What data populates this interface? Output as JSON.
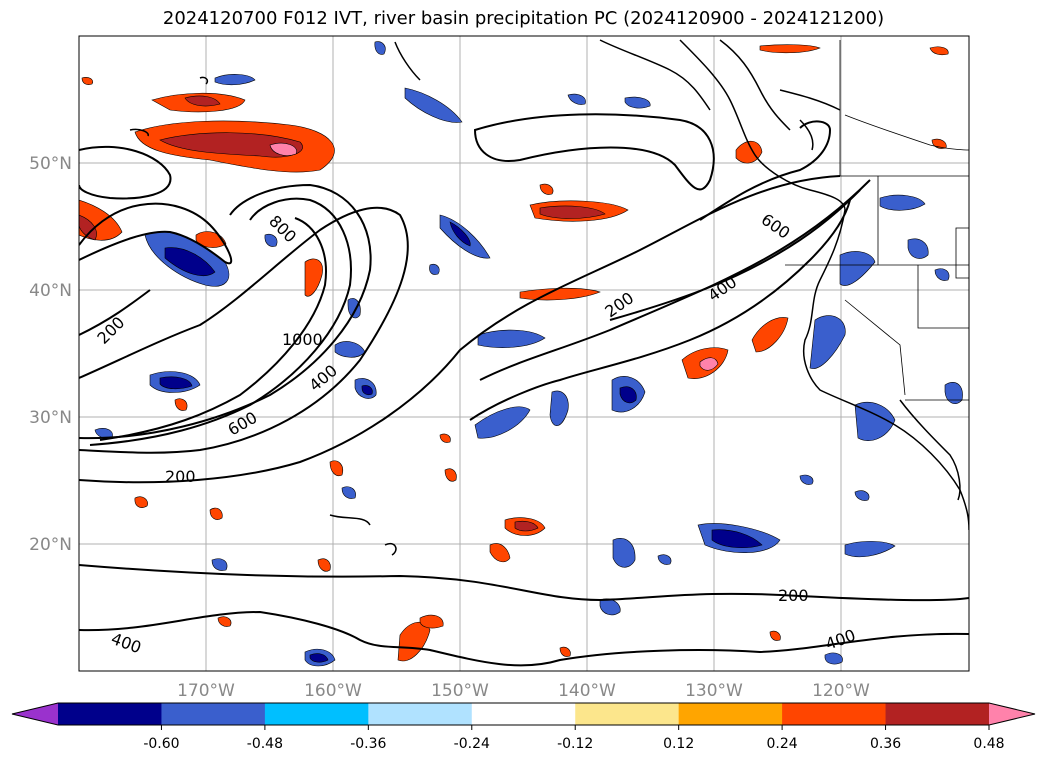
{
  "title": "2024120700 F012 IVT, river basin precipitation PC (2024120900 - 2024121200)",
  "lon_ticks": [
    "170°W",
    "160°W",
    "150°W",
    "140°W",
    "130°W",
    "120°W"
  ],
  "lat_ticks": [
    "50°N",
    "40°N",
    "30°N",
    "20°N"
  ],
  "contour_labels": [
    "800",
    "200",
    "1000",
    "400",
    "600",
    "200",
    "200",
    "400",
    "600",
    "200",
    "400"
  ],
  "colorbar": {
    "colors": [
      "#9a32cd",
      "#00008b",
      "#3a5fcd",
      "#00bfff",
      "#b0e2ff",
      "#ffffff",
      "#fce68c",
      "#ffa500",
      "#ff4500",
      "#b22222",
      "#ff82ab"
    ],
    "ticks": [
      "-0.60",
      "-0.48",
      "-0.36",
      "-0.24",
      "-0.12",
      "0.12",
      "0.24",
      "0.36",
      "0.48",
      "0.60"
    ]
  }
}
